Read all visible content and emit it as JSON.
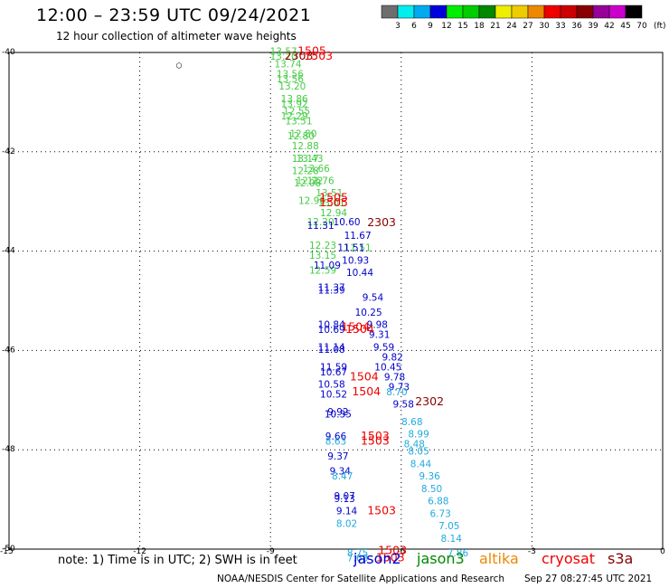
{
  "header": {
    "title": "12:00 – 23:59 UTC 09/24/2021",
    "subtitle": "12 hour collection of altimeter wave heights"
  },
  "colorbar": {
    "bins": [
      {
        "label": "",
        "color": "#6e6e6e"
      },
      {
        "label": "3",
        "color": "#00eeee"
      },
      {
        "label": "6",
        "color": "#00aaee"
      },
      {
        "label": "9",
        "color": "#0000dd"
      },
      {
        "label": "12",
        "color": "#00ee00"
      },
      {
        "label": "15",
        "color": "#00cc00"
      },
      {
        "label": "18",
        "color": "#008800"
      },
      {
        "label": "21",
        "color": "#eeee00"
      },
      {
        "label": "24",
        "color": "#eecc00"
      },
      {
        "label": "27",
        "color": "#ee8800"
      },
      {
        "label": "30",
        "color": "#ee0000"
      },
      {
        "label": "33",
        "color": "#cc0000"
      },
      {
        "label": "36",
        "color": "#880000"
      },
      {
        "label": "39",
        "color": "#990099"
      },
      {
        "label": "42",
        "color": "#cc00cc"
      },
      {
        "label": "45",
        "color": "#000000"
      },
      {
        "label": "70",
        "color": ""
      }
    ],
    "unit": "(ft)"
  },
  "legend": {
    "note": "note:  1) Time is in UTC; 2) SWH is in feet",
    "missions": [
      {
        "name": "jason2",
        "color": "#0000cc"
      },
      {
        "name": "jason3",
        "color": "#008800"
      },
      {
        "name": "altika",
        "color": "#ee8800"
      },
      {
        "name": "cryosat",
        "color": "#ee0000"
      },
      {
        "name": "s3a",
        "color": "#880000"
      }
    ]
  },
  "footer": {
    "credit": "NOAA/NESDIS Center for Satellite Applications and Research",
    "timestamp": "Sep 27 08:27:45 UTC 2021"
  },
  "chart_data": {
    "type": "scatter",
    "xlim": [
      -15,
      0
    ],
    "ylim": [
      -50,
      -40
    ],
    "x_ticks": [
      -12,
      -9,
      -6,
      -3,
      0
    ],
    "y_ticks": [
      -40,
      -42,
      -44,
      -46,
      -48,
      -50
    ],
    "x_tick_labels": [
      "-12",
      "-9",
      "-6",
      "-3",
      "0"
    ],
    "y_tick_labels": [
      "-40",
      "-42",
      "-44",
      "-46",
      "-48",
      "-50"
    ],
    "corner_label": "-15",
    "grid": true,
    "wave_heights": [
      {
        "lon": -8.7,
        "lat": -40.05,
        "text": "13.57",
        "color": "#44cc44"
      },
      {
        "lon": -8.7,
        "lat": -40.15,
        "text": "13.70",
        "color": "#44cc44"
      },
      {
        "lon": -8.6,
        "lat": -40.3,
        "text": "13.74",
        "color": "#44cc44"
      },
      {
        "lon": -8.55,
        "lat": -40.5,
        "text": "13.56",
        "color": "#44cc44"
      },
      {
        "lon": -8.55,
        "lat": -40.6,
        "text": "13.56",
        "color": "#44cc44"
      },
      {
        "lon": -8.5,
        "lat": -40.75,
        "text": "13.20",
        "color": "#44cc44"
      },
      {
        "lon": -8.45,
        "lat": -41.0,
        "text": "13.86",
        "color": "#44cc44"
      },
      {
        "lon": -8.45,
        "lat": -41.1,
        "text": "13.92",
        "color": "#44cc44"
      },
      {
        "lon": -8.4,
        "lat": -41.25,
        "text": "12.55",
        "color": "#44cc44"
      },
      {
        "lon": -8.45,
        "lat": -41.35,
        "text": "12.29",
        "color": "#44cc44"
      },
      {
        "lon": -8.35,
        "lat": -41.45,
        "text": "13.51",
        "color": "#44cc44"
      },
      {
        "lon": -8.25,
        "lat": -41.7,
        "text": "12.80",
        "color": "#44cc44"
      },
      {
        "lon": -8.3,
        "lat": -41.75,
        "text": "12.80",
        "color": "#44cc44"
      },
      {
        "lon": -8.2,
        "lat": -41.95,
        "text": "12.88",
        "color": "#44cc44"
      },
      {
        "lon": -8.1,
        "lat": -42.2,
        "text": "13.43",
        "color": "#44cc44"
      },
      {
        "lon": -8.2,
        "lat": -42.2,
        "text": "13.17",
        "color": "#44cc44"
      },
      {
        "lon": -7.95,
        "lat": -42.4,
        "text": "13.66",
        "color": "#44cc44"
      },
      {
        "lon": -8.2,
        "lat": -42.45,
        "text": "12.28",
        "color": "#44cc44"
      },
      {
        "lon": -7.85,
        "lat": -42.65,
        "text": "12.76",
        "color": "#44cc44"
      },
      {
        "lon": -8.1,
        "lat": -42.65,
        "text": "12.22",
        "color": "#44cc44"
      },
      {
        "lon": -8.15,
        "lat": -42.7,
        "text": "12.08",
        "color": "#44cc44"
      },
      {
        "lon": -7.65,
        "lat": -42.9,
        "text": "13.51",
        "color": "#44cc44"
      },
      {
        "lon": -8.05,
        "lat": -43.05,
        "text": "12.90",
        "color": "#44cc44"
      },
      {
        "lon": -7.6,
        "lat": -43.1,
        "text": "13.01",
        "color": "#44cc44"
      },
      {
        "lon": -7.55,
        "lat": -43.3,
        "text": "12.94",
        "color": "#44cc44"
      },
      {
        "lon": -7.85,
        "lat": -43.48,
        "text": "12.20",
        "color": "#44cc44"
      },
      {
        "lon": -7.0,
        "lat": -44.0,
        "text": "11.51",
        "color": "#44cc44"
      },
      {
        "lon": -7.8,
        "lat": -43.95,
        "text": "12.23",
        "color": "#44cc44"
      },
      {
        "lon": -7.8,
        "lat": -44.15,
        "text": "13.15",
        "color": "#44cc44"
      },
      {
        "lon": -7.8,
        "lat": -44.45,
        "text": "12.59",
        "color": "#44cc44"
      },
      {
        "lon": -7.25,
        "lat": -43.48,
        "text": "10.60",
        "color": "#0000cc"
      },
      {
        "lon": -7.85,
        "lat": -43.55,
        "text": "11.31",
        "color": "#0000cc"
      },
      {
        "lon": -7.0,
        "lat": -43.75,
        "text": "11.67",
        "color": "#0000cc"
      },
      {
        "lon": -7.15,
        "lat": -44.0,
        "text": "11.51",
        "color": "#0000cc"
      },
      {
        "lon": -7.05,
        "lat": -44.25,
        "text": "10.93",
        "color": "#0000cc"
      },
      {
        "lon": -7.7,
        "lat": -44.35,
        "text": "11.09",
        "color": "#0000cc"
      },
      {
        "lon": -6.95,
        "lat": -44.5,
        "text": "10.44",
        "color": "#0000cc"
      },
      {
        "lon": -7.6,
        "lat": -44.8,
        "text": "11.37",
        "color": "#0000cc"
      },
      {
        "lon": -7.6,
        "lat": -44.85,
        "text": "11.39",
        "color": "#0000cc"
      },
      {
        "lon": -6.65,
        "lat": -45.0,
        "text": "9.54",
        "color": "#0000cc"
      },
      {
        "lon": -6.75,
        "lat": -45.3,
        "text": "10.25",
        "color": "#0000cc"
      },
      {
        "lon": -6.55,
        "lat": -45.55,
        "text": "9.98",
        "color": "#0000cc"
      },
      {
        "lon": -7.6,
        "lat": -45.55,
        "text": "10.84",
        "color": "#0000cc"
      },
      {
        "lon": -7.6,
        "lat": -45.65,
        "text": "10.69",
        "color": "#0000cc"
      },
      {
        "lon": -6.5,
        "lat": -45.75,
        "text": "9.31",
        "color": "#0000cc"
      },
      {
        "lon": -6.4,
        "lat": -46.0,
        "text": "9.59",
        "color": "#0000cc"
      },
      {
        "lon": -7.6,
        "lat": -46.0,
        "text": "11.14",
        "color": "#0000cc"
      },
      {
        "lon": -7.6,
        "lat": -46.05,
        "text": "11.08",
        "color": "#0000cc"
      },
      {
        "lon": -6.2,
        "lat": -46.2,
        "text": "9.82",
        "color": "#0000cc"
      },
      {
        "lon": -6.3,
        "lat": -46.4,
        "text": "10.45",
        "color": "#0000cc"
      },
      {
        "lon": -7.55,
        "lat": -46.4,
        "text": "11.59",
        "color": "#0000cc"
      },
      {
        "lon": -7.55,
        "lat": -46.5,
        "text": "10.67",
        "color": "#0000cc"
      },
      {
        "lon": -6.15,
        "lat": -46.6,
        "text": "9.78",
        "color": "#0000cc"
      },
      {
        "lon": -7.6,
        "lat": -46.75,
        "text": "10.58",
        "color": "#0000cc"
      },
      {
        "lon": -6.05,
        "lat": -46.8,
        "text": "9.73",
        "color": "#0000cc"
      },
      {
        "lon": -7.55,
        "lat": -46.95,
        "text": "10.52",
        "color": "#0000cc"
      },
      {
        "lon": -5.95,
        "lat": -47.15,
        "text": "9.58",
        "color": "#0000cc"
      },
      {
        "lon": -7.45,
        "lat": -47.3,
        "text": "9.92",
        "color": "#0000cc"
      },
      {
        "lon": -7.45,
        "lat": -47.35,
        "text": "10.35",
        "color": "#0000cc"
      },
      {
        "lon": -7.5,
        "lat": -47.8,
        "text": "9.66",
        "color": "#0000cc"
      },
      {
        "lon": -7.45,
        "lat": -48.2,
        "text": "9.37",
        "color": "#0000cc"
      },
      {
        "lon": -7.4,
        "lat": -48.5,
        "text": "9.34",
        "color": "#0000cc"
      },
      {
        "lon": -7.3,
        "lat": -49.0,
        "text": "9.07",
        "color": "#0000cc"
      },
      {
        "lon": -7.3,
        "lat": -49.05,
        "text": "9.13",
        "color": "#0000cc"
      },
      {
        "lon": -7.25,
        "lat": -49.3,
        "text": "9.14",
        "color": "#0000cc"
      },
      {
        "lon": -6.1,
        "lat": -46.9,
        "text": "8.70",
        "color": "#22aadd"
      },
      {
        "lon": -5.75,
        "lat": -47.5,
        "text": "8.68",
        "color": "#22aadd"
      },
      {
        "lon": -5.6,
        "lat": -47.75,
        "text": "8.99",
        "color": "#22aadd"
      },
      {
        "lon": -7.5,
        "lat": -47.9,
        "text": "8.63",
        "color": "#22aadd"
      },
      {
        "lon": -5.7,
        "lat": -47.95,
        "text": "8.48",
        "color": "#22aadd"
      },
      {
        "lon": -5.6,
        "lat": -48.1,
        "text": "8.05",
        "color": "#22aadd"
      },
      {
        "lon": -5.55,
        "lat": -48.35,
        "text": "8.44",
        "color": "#22aadd"
      },
      {
        "lon": -7.35,
        "lat": -48.6,
        "text": "8.47",
        "color": "#22aadd"
      },
      {
        "lon": -5.35,
        "lat": -48.6,
        "text": "9.36",
        "color": "#22aadd"
      },
      {
        "lon": -5.3,
        "lat": -48.85,
        "text": "8.50",
        "color": "#22aadd"
      },
      {
        "lon": -5.15,
        "lat": -49.1,
        "text": "6.88",
        "color": "#22aadd"
      },
      {
        "lon": -5.1,
        "lat": -49.35,
        "text": "6.73",
        "color": "#22aadd"
      },
      {
        "lon": -7.25,
        "lat": -49.55,
        "text": "8.02",
        "color": "#22aadd"
      },
      {
        "lon": -4.9,
        "lat": -49.6,
        "text": "7.05",
        "color": "#22aadd"
      },
      {
        "lon": -4.85,
        "lat": -49.85,
        "text": "8.14",
        "color": "#22aadd"
      },
      {
        "lon": -4.7,
        "lat": -50.15,
        "text": "7.86",
        "color": "#22aadd"
      },
      {
        "lon": -7.0,
        "lat": -50.15,
        "text": "8.75",
        "color": "#22aadd"
      },
      {
        "lon": -7.0,
        "lat": -50.25,
        "text": "7.68",
        "color": "#22aadd"
      }
    ],
    "time_labels": [
      {
        "lon": -8.05,
        "lat": -40.05,
        "text": "1505",
        "color": "#ee0000"
      },
      {
        "lon": -8.35,
        "lat": -40.15,
        "text": "2303",
        "color": "#880000"
      },
      {
        "lon": -7.9,
        "lat": -40.15,
        "text": "1503",
        "color": "#ee0000"
      },
      {
        "lon": -7.55,
        "lat": -43.0,
        "text": "1505",
        "color": "#ee0000"
      },
      {
        "lon": -7.55,
        "lat": -43.1,
        "text": "1505",
        "color": "#ee0000"
      },
      {
        "lon": -6.45,
        "lat": -43.5,
        "text": "2303",
        "color": "#880000"
      },
      {
        "lon": -7.05,
        "lat": -45.6,
        "text": "1504",
        "color": "#ee0000"
      },
      {
        "lon": -6.95,
        "lat": -45.65,
        "text": "1504",
        "color": "#ee0000"
      },
      {
        "lon": -6.85,
        "lat": -46.6,
        "text": "1504",
        "color": "#ee0000"
      },
      {
        "lon": -6.8,
        "lat": -46.9,
        "text": "1504",
        "color": "#ee0000"
      },
      {
        "lon": -5.35,
        "lat": -47.1,
        "text": "2302",
        "color": "#880000"
      },
      {
        "lon": -6.6,
        "lat": -47.8,
        "text": "1503",
        "color": "#ee0000"
      },
      {
        "lon": -6.6,
        "lat": -47.9,
        "text": "1503",
        "color": "#ee0000"
      },
      {
        "lon": -6.45,
        "lat": -49.3,
        "text": "1503",
        "color": "#ee0000"
      },
      {
        "lon": -6.2,
        "lat": -50.1,
        "text": "1503",
        "color": "#ee0000"
      },
      {
        "lon": -6.25,
        "lat": -50.25,
        "text": "1503",
        "color": "#ee0000"
      }
    ],
    "markers": [
      {
        "lon": -11.1,
        "lat": -40.3,
        "glyph": "○",
        "color": "#000000"
      }
    ]
  }
}
